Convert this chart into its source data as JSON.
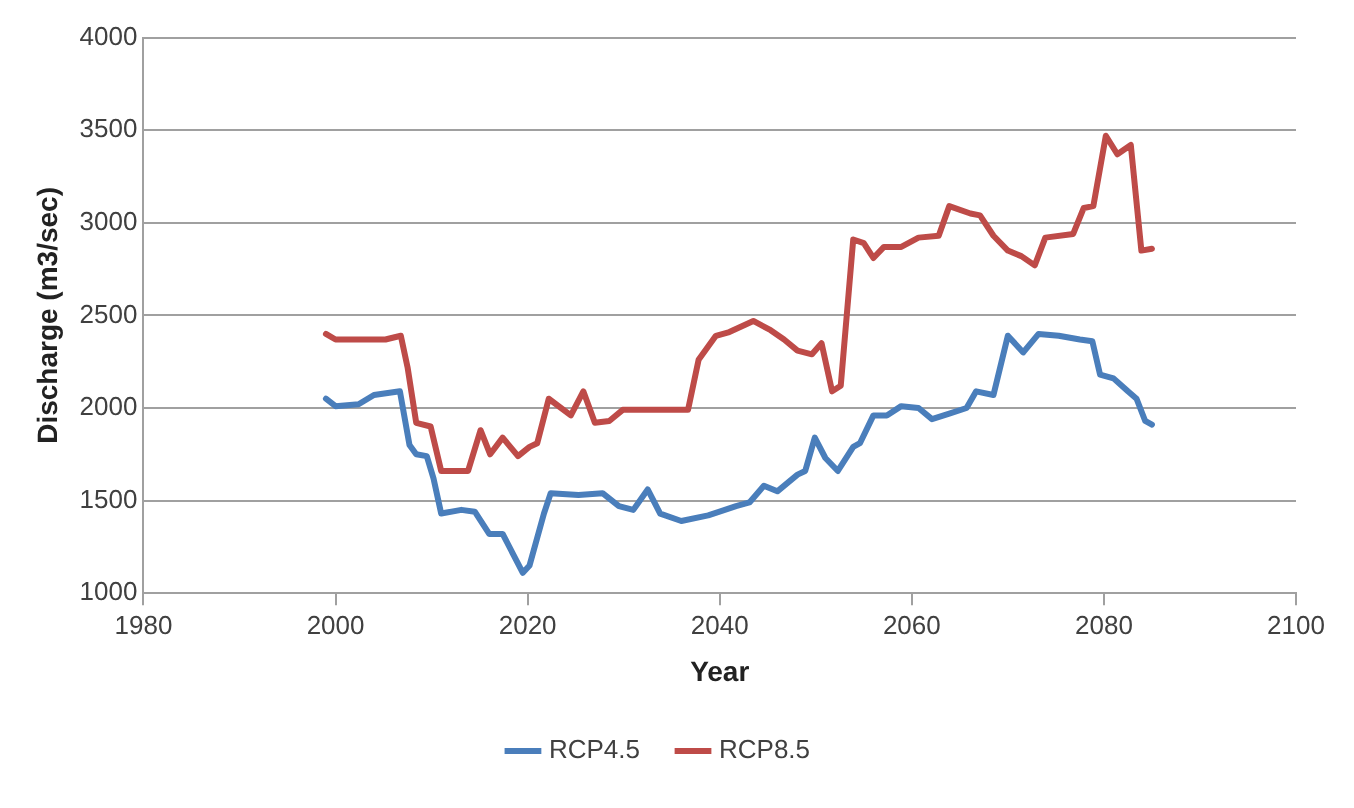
{
  "chart_data": {
    "type": "line",
    "xlabel": "Year",
    "ylabel": "Discharge (m3/sec)",
    "xlim": [
      1980,
      2100
    ],
    "xticks": [
      1980,
      2000,
      2020,
      2040,
      2060,
      2080,
      2100
    ],
    "ylim": [
      1000,
      4000
    ],
    "yticks": [
      1000,
      1500,
      2000,
      2500,
      3000,
      3500,
      4000
    ],
    "grid": "y",
    "legend": "bottom",
    "marker": "none",
    "line_style": "solid",
    "series": [
      {
        "name": "RCP4.5",
        "color": "#4a7ebb",
        "x": [
          1999,
          2000,
          2002.4,
          2004,
          2006.7,
          2007.7,
          2008.4,
          2009.5,
          2010.2,
          2011,
          2013.1,
          2014.5,
          2016,
          2017.4,
          2018.5,
          2019.5,
          2020.2,
          2021.7,
          2022.4,
          2025.3,
          2027.8,
          2029.5,
          2031,
          2032.5,
          2033.8,
          2036,
          2038.8,
          2041.7,
          2043.1,
          2044.6,
          2046,
          2048.1,
          2048.9,
          2049.9,
          2051,
          2052.3,
          2053.9,
          2054.6,
          2056,
          2057.4,
          2058.9,
          2060.7,
          2062.1,
          2063.9,
          2065.7,
          2066.7,
          2068.5,
          2070,
          2071.6,
          2073.2,
          2075.3,
          2077.5,
          2078.8,
          2079.6,
          2081,
          2082.5,
          2083.4,
          2084.3,
          2085
        ],
        "values": [
          2050,
          2010,
          2020,
          2070,
          2090,
          1800,
          1750,
          1740,
          1620,
          1430,
          1450,
          1440,
          1320,
          1320,
          1210,
          1110,
          1150,
          1430,
          1540,
          1530,
          1540,
          1470,
          1450,
          1560,
          1430,
          1390,
          1420,
          1470,
          1490,
          1580,
          1550,
          1640,
          1660,
          1840,
          1730,
          1660,
          1790,
          1810,
          1960,
          1960,
          2010,
          2000,
          1940,
          1970,
          2000,
          2090,
          2070,
          2390,
          2300,
          2400,
          2390,
          2370,
          2360,
          2180,
          2160,
          2090,
          2050,
          1930,
          1910
        ]
      },
      {
        "name": "RCP8.5",
        "color": "#be4b48",
        "x": [
          1999,
          2000,
          2002.4,
          2005.2,
          2006.8,
          2007.5,
          2008.4,
          2009.9,
          2011,
          2012,
          2013.8,
          2015.1,
          2016.1,
          2017.4,
          2019,
          2020.2,
          2021,
          2022.2,
          2024.5,
          2025.8,
          2027,
          2028.5,
          2029.9,
          2031.7,
          2034.5,
          2036.7,
          2037.8,
          2039.6,
          2041,
          2043.5,
          2045.3,
          2046.7,
          2048.1,
          2049.6,
          2050.6,
          2051.7,
          2052.6,
          2053.9,
          2055,
          2056,
          2057.1,
          2058.9,
          2060.7,
          2062.8,
          2063.9,
          2066.1,
          2067.1,
          2068.5,
          2070,
          2071.4,
          2072.8,
          2073.9,
          2076.8,
          2077.9,
          2078.9,
          2080.2,
          2081.4,
          2082.8,
          2083.9,
          2085
        ],
        "values": [
          2400,
          2370,
          2370,
          2370,
          2390,
          2220,
          1920,
          1900,
          1660,
          1660,
          1660,
          1880,
          1750,
          1840,
          1740,
          1790,
          1810,
          2050,
          1960,
          2090,
          1920,
          1930,
          1990,
          1990,
          1990,
          1990,
          2260,
          2390,
          2410,
          2470,
          2420,
          2370,
          2310,
          2290,
          2350,
          2090,
          2120,
          2910,
          2890,
          2810,
          2870,
          2870,
          2920,
          2930,
          3090,
          3050,
          3040,
          2930,
          2850,
          2820,
          2770,
          2920,
          2940,
          3080,
          3090,
          3470,
          3370,
          3420,
          2850,
          2860
        ]
      }
    ]
  }
}
